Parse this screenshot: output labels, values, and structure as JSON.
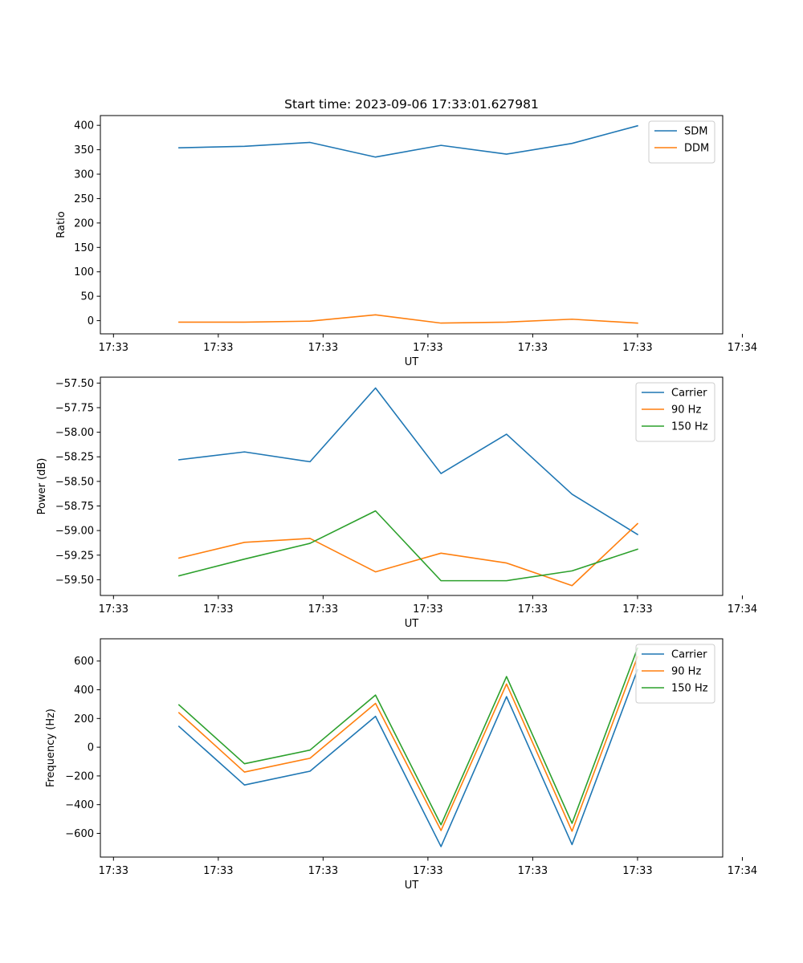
{
  "figure_title": "Start time: 2023-09-06 17:33:01.627981",
  "colors": {
    "blue": "#1f77b4",
    "orange": "#ff7f0e",
    "green": "#2ca02c"
  },
  "chart_data": [
    {
      "type": "line",
      "title": "Start time: 2023-09-06 17:33:01.627981",
      "xlabel": "UT",
      "ylabel": "Ratio",
      "x": [
        0.5,
        1.0,
        1.5,
        2.0,
        2.5,
        3.0,
        3.5,
        4.0
      ],
      "xlim": [
        -0.1,
        4.65
      ],
      "ylim": [
        -27,
        420
      ],
      "x_tick_positions": [
        0,
        0.8,
        1.6,
        2.4,
        3.2,
        4.0,
        4.8
      ],
      "x_tick_labels": [
        "17:33",
        "17:33",
        "17:33",
        "17:33",
        "17:33",
        "17:33",
        "17:34"
      ],
      "y_ticks": [
        0,
        50,
        100,
        150,
        200,
        250,
        300,
        350,
        400
      ],
      "y_tick_labels": [
        "0",
        "50",
        "100",
        "150",
        "200",
        "250",
        "300",
        "350",
        "400"
      ],
      "legend_location": "upper right",
      "series": [
        {
          "name": "SDM",
          "color": "#1f77b4",
          "values": [
            354,
            357,
            365,
            335,
            359,
            341,
            363,
            399
          ]
        },
        {
          "name": "DDM",
          "color": "#ff7f0e",
          "values": [
            -3,
            -3,
            -1,
            12,
            -5,
            -3,
            3,
            -5
          ]
        }
      ]
    },
    {
      "type": "line",
      "title": "",
      "xlabel": "UT",
      "ylabel": "Power (dB)",
      "x": [
        0.5,
        1.0,
        1.5,
        2.0,
        2.5,
        3.0,
        3.5,
        4.0
      ],
      "xlim": [
        -0.1,
        4.65
      ],
      "ylim": [
        -59.66,
        -57.44
      ],
      "x_tick_positions": [
        0,
        0.8,
        1.6,
        2.4,
        3.2,
        4.0,
        4.8
      ],
      "x_tick_labels": [
        "17:33",
        "17:33",
        "17:33",
        "17:33",
        "17:33",
        "17:33",
        "17:34"
      ],
      "y_ticks": [
        -57.5,
        -57.75,
        -58.0,
        -58.25,
        -58.5,
        -58.75,
        -59.0,
        -59.25,
        -59.5
      ],
      "y_tick_labels": [
        "−57.50",
        "−57.75",
        "−58.00",
        "−58.25",
        "−58.50",
        "−58.75",
        "−59.00",
        "−59.25",
        "−59.50"
      ],
      "legend_location": "upper right",
      "series": [
        {
          "name": "Carrier",
          "color": "#1f77b4",
          "values": [
            -58.28,
            -58.2,
            -58.3,
            -57.55,
            -58.42,
            -58.02,
            -58.63,
            -59.04
          ]
        },
        {
          "name": "90 Hz",
          "color": "#ff7f0e",
          "values": [
            -59.28,
            -59.12,
            -59.08,
            -59.42,
            -59.23,
            -59.33,
            -59.56,
            -58.93
          ]
        },
        {
          "name": "150 Hz",
          "color": "#2ca02c",
          "values": [
            -59.46,
            -59.29,
            -59.13,
            -58.8,
            -59.51,
            -59.51,
            -59.41,
            -59.19
          ]
        }
      ]
    },
    {
      "type": "line",
      "title": "",
      "xlabel": "UT",
      "ylabel": "Frequency (Hz)",
      "x": [
        0.5,
        1.0,
        1.5,
        2.0,
        2.5,
        3.0,
        3.5,
        4.0
      ],
      "xlim": [
        -0.1,
        4.65
      ],
      "ylim": [
        -765,
        755
      ],
      "x_tick_positions": [
        0,
        0.8,
        1.6,
        2.4,
        3.2,
        4.0,
        4.8
      ],
      "x_tick_labels": [
        "17:33",
        "17:33",
        "17:33",
        "17:33",
        "17:33",
        "17:33",
        "17:34"
      ],
      "y_ticks": [
        -600,
        -400,
        -200,
        0,
        200,
        400,
        600
      ],
      "y_tick_labels": [
        "−600",
        "−400",
        "−200",
        "0",
        "200",
        "400",
        "600"
      ],
      "legend_location": "upper right",
      "series": [
        {
          "name": "Carrier",
          "color": "#1f77b4",
          "values": [
            145,
            -263,
            -167,
            215,
            -692,
            352,
            -678,
            540
          ]
        },
        {
          "name": "90 Hz",
          "color": "#ff7f0e",
          "values": [
            240,
            -173,
            -77,
            305,
            -580,
            440,
            -585,
            630
          ]
        },
        {
          "name": "150 Hz",
          "color": "#2ca02c",
          "values": [
            295,
            -115,
            -20,
            363,
            -540,
            492,
            -530,
            690
          ]
        }
      ]
    }
  ]
}
